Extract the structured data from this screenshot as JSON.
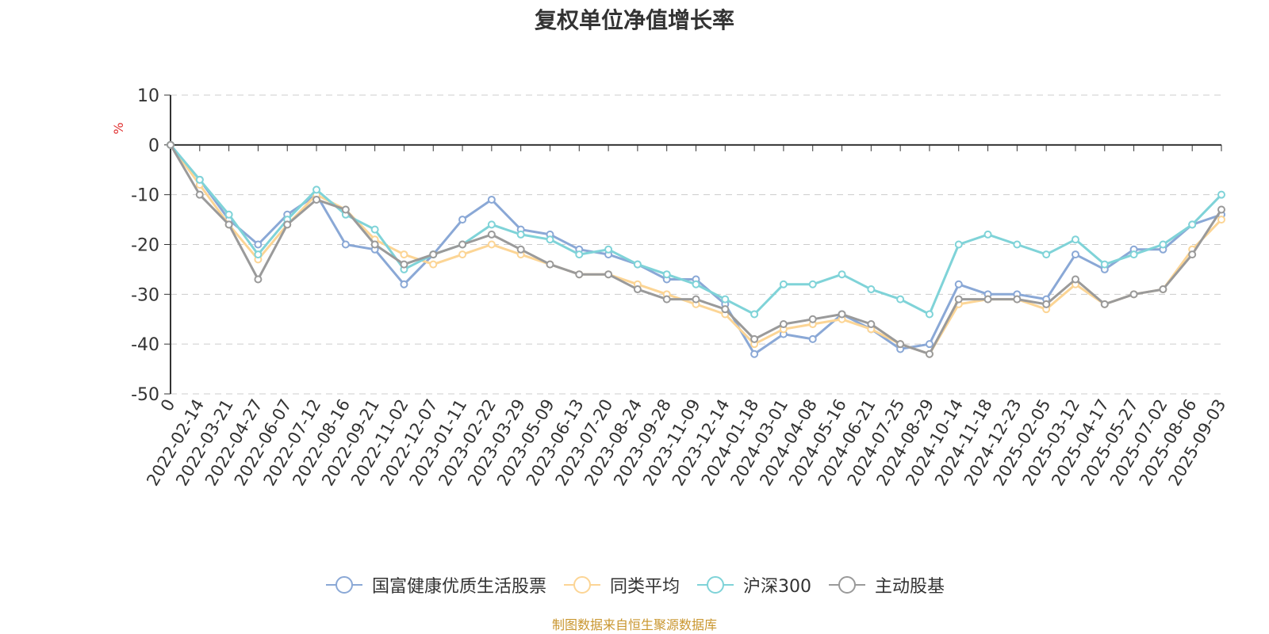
{
  "chart_data": {
    "type": "line",
    "title": "复权单位净值增长率",
    "ylabel": "%",
    "xlabel": "",
    "ylim": [
      -50,
      10
    ],
    "yticks": [
      10,
      0,
      -10,
      -20,
      -30,
      -40,
      -50
    ],
    "grid": true,
    "legend_position": "bottom",
    "x": [
      "0",
      "2022-02-14",
      "2022-03-21",
      "2022-04-27",
      "2022-06-07",
      "2022-07-12",
      "2022-08-16",
      "2022-09-21",
      "2022-11-02",
      "2022-12-07",
      "2023-01-11",
      "2023-02-22",
      "2023-03-29",
      "2023-05-09",
      "2023-06-13",
      "2023-07-20",
      "2023-08-24",
      "2023-09-28",
      "2023-11-09",
      "2023-12-14",
      "2024-01-18",
      "2024-03-01",
      "2024-04-08",
      "2024-05-16",
      "2024-06-21",
      "2024-07-25",
      "2024-08-29",
      "2024-10-14",
      "2024-11-18",
      "2024-12-23",
      "2025-02-05",
      "2025-03-12",
      "2025-04-17",
      "2025-05-27",
      "2025-07-02",
      "2025-08-06",
      "2025-09-03"
    ],
    "series": [
      {
        "name": "国富健康优质生活股票",
        "color": "#8aa8d6",
        "values": [
          0,
          -7,
          -15,
          -20,
          -14,
          -10,
          -20,
          -21,
          -28,
          -22,
          -15,
          -11,
          -17,
          -18,
          -21,
          -22,
          -24,
          -27,
          -27,
          -32,
          -42,
          -38,
          -39,
          -34,
          -37,
          -41,
          -40,
          -28,
          -30,
          -30,
          -31,
          -22,
          -25,
          -21,
          -21,
          -16,
          -14
        ]
      },
      {
        "name": "同类平均",
        "color": "#fcd595",
        "values": [
          0,
          -8,
          -16,
          -23,
          -16,
          -10,
          -13,
          -19,
          -22,
          -24,
          -22,
          -20,
          -22,
          -24,
          -26,
          -26,
          -28,
          -30,
          -32,
          -34,
          -40,
          -37,
          -36,
          -35,
          -37,
          -40,
          -42,
          -32,
          -31,
          -31,
          -33,
          -28,
          -32,
          -30,
          -29,
          -21,
          -15
        ]
      },
      {
        "name": "沪深300",
        "color": "#7fd3d8",
        "values": [
          0,
          -7,
          -14,
          -22,
          -15,
          -9,
          -14,
          -17,
          -25,
          -22,
          -20,
          -16,
          -18,
          -19,
          -22,
          -21,
          -24,
          -26,
          -28,
          -31,
          -34,
          -28,
          -28,
          -26,
          -29,
          -31,
          -34,
          -20,
          -18,
          -20,
          -22,
          -19,
          -24,
          -22,
          -20,
          -16,
          -10
        ]
      },
      {
        "name": "主动股基",
        "color": "#9a9a9a",
        "values": [
          0,
          -10,
          -16,
          -27,
          -16,
          -11,
          -13,
          -20,
          -24,
          -22,
          -20,
          -18,
          -21,
          -24,
          -26,
          -26,
          -29,
          -31,
          -31,
          -33,
          -39,
          -36,
          -35,
          -34,
          -36,
          -40,
          -42,
          -31,
          -31,
          -31,
          -32,
          -27,
          -32,
          -30,
          -29,
          -22,
          -13
        ]
      }
    ]
  },
  "source_note": "制图数据来自恒生聚源数据库"
}
